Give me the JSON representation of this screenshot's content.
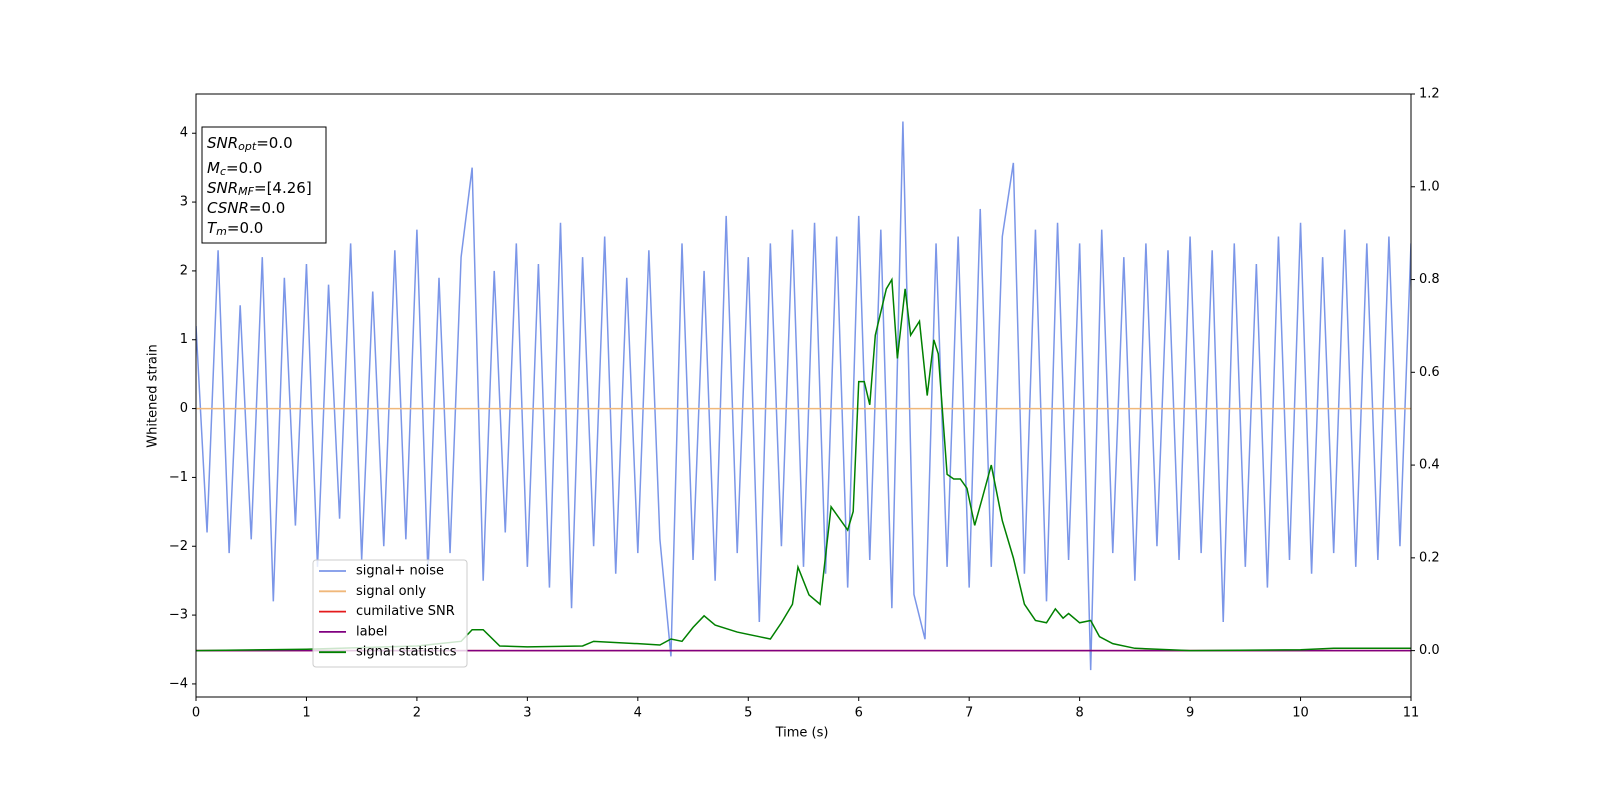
{
  "chart_data": {
    "type": "line",
    "xlabel": "Time (s)",
    "ylabel": "Whitened strain",
    "xlim": [
      0,
      11
    ],
    "ylim": [
      -4.19,
      4.57
    ],
    "y2lim": [
      -0.1,
      1.2
    ],
    "xticks": [
      0,
      1,
      2,
      3,
      4,
      5,
      6,
      7,
      8,
      9,
      10,
      11
    ],
    "yticks": [
      {
        "value": -4,
        "label": "−4"
      },
      {
        "value": -3,
        "label": "−3"
      },
      {
        "value": -2,
        "label": "−2"
      },
      {
        "value": -1,
        "label": "−1"
      },
      0,
      1,
      2,
      3,
      4
    ],
    "y2ticks": [
      {
        "value": 0,
        "label": "0.0"
      },
      {
        "value": 0.2,
        "label": "0.2"
      },
      {
        "value": 0.4,
        "label": "0.4"
      },
      {
        "value": 0.6,
        "label": "0.6"
      },
      {
        "value": 0.8,
        "label": "0.8"
      },
      {
        "value": 1,
        "label": "1.0"
      },
      {
        "value": 1.2,
        "label": "1.2"
      }
    ],
    "legend": "lower left",
    "annotations": [
      {
        "main": "SNR",
        "sub": "opt",
        "rest": "=0.0"
      },
      {
        "main": "M",
        "sub": "c",
        "rest": "=0.0"
      },
      {
        "main": "SNR",
        "sub": "MF",
        "rest": "=[4.26]"
      },
      {
        "main": "CSNR",
        "rest": "=0.0"
      },
      {
        "main": "T",
        "sub": "m",
        "rest": "=0.0"
      }
    ],
    "series": [
      {
        "name": "signal+ noise",
        "color": "#7b96e8",
        "x": [
          0,
          0.1,
          0.2,
          0.3,
          0.4,
          0.5,
          0.6,
          0.7,
          0.8,
          0.9,
          1,
          1.1,
          1.2,
          1.3,
          1.4,
          1.5,
          1.6,
          1.7,
          1.8,
          1.9,
          2,
          2.1,
          2.2,
          2.3,
          2.4,
          2.5,
          2.6,
          2.7,
          2.8,
          2.9,
          3,
          3.1,
          3.2,
          3.3,
          3.4,
          3.5,
          3.6,
          3.7,
          3.8,
          3.9,
          4,
          4.1,
          4.2,
          4.3,
          4.4,
          4.5,
          4.6,
          4.7,
          4.8,
          4.9,
          5,
          5.1,
          5.2,
          5.3,
          5.4,
          5.5,
          5.6,
          5.7,
          5.8,
          5.9,
          6,
          6.1,
          6.2,
          6.3,
          6.4,
          6.5,
          6.6,
          6.7,
          6.8,
          6.9,
          7,
          7.1,
          7.2,
          7.3,
          7.4,
          7.5,
          7.6,
          7.7,
          7.8,
          7.9,
          8,
          8.1,
          8.2,
          8.3,
          8.4,
          8.5,
          8.6,
          8.7,
          8.8,
          8.9,
          9,
          9.1,
          9.2,
          9.3,
          9.4,
          9.5,
          9.6,
          9.7,
          9.8,
          9.9,
          10,
          10.1,
          10.2,
          10.3,
          10.4,
          10.5,
          10.6,
          10.7,
          10.8,
          10.9,
          11
        ],
        "values": [
          1.2,
          -1.8,
          2.3,
          -2.1,
          1.5,
          -1.9,
          2.2,
          -2.8,
          1.9,
          -1.7,
          2.1,
          -2.3,
          1.8,
          -1.6,
          2.4,
          -2.2,
          1.7,
          -2.0,
          2.3,
          -1.9,
          2.6,
          -2.4,
          1.9,
          -2.1,
          2.2,
          3.5,
          -2.5,
          2.0,
          -1.8,
          2.4,
          -2.3,
          2.1,
          -2.6,
          2.7,
          -2.9,
          2.2,
          -2.0,
          2.5,
          -2.4,
          1.9,
          -2.1,
          2.3,
          -1.9,
          -3.6,
          2.4,
          -2.2,
          2.0,
          -2.5,
          2.8,
          -2.1,
          2.2,
          -3.1,
          2.4,
          -2.0,
          2.6,
          -2.3,
          2.7,
          -2.4,
          2.5,
          -2.6,
          2.8,
          -2.2,
          2.6,
          -2.9,
          4.17,
          -2.7,
          -3.35,
          2.4,
          -2.3,
          2.5,
          -2.6,
          2.9,
          -2.3,
          2.5,
          3.57,
          -2.4,
          2.6,
          -2.8,
          2.7,
          -2.2,
          2.4,
          -3.8,
          2.6,
          -2.1,
          2.2,
          -2.5,
          2.4,
          -2.0,
          2.3,
          -2.2,
          2.5,
          -2.1,
          2.3,
          -3.1,
          2.4,
          -2.3,
          2.1,
          -2.6,
          2.5,
          -2.2,
          2.7,
          -2.4,
          2.2,
          -2.1,
          2.6,
          -2.3,
          2.4,
          -2.2,
          2.5,
          -2.0,
          2.4
        ]
      },
      {
        "name": "signal only",
        "color": "#f0b87a",
        "x": [
          0,
          11
        ],
        "values": [
          0,
          0
        ]
      },
      {
        "name": "cumilative SNR",
        "color": "#e41a1c",
        "axis": "y2",
        "x": [
          0,
          11
        ],
        "values": [
          0,
          0
        ]
      },
      {
        "name": "label",
        "color": "#800080",
        "axis": "y2",
        "x": [
          0,
          11
        ],
        "values": [
          0,
          0
        ]
      },
      {
        "name": "signal statistics",
        "color": "#008000",
        "axis": "y2",
        "x": [
          0,
          1,
          2,
          2.4,
          2.5,
          2.6,
          2.75,
          3,
          3.5,
          3.6,
          4,
          4.2,
          4.3,
          4.4,
          4.5,
          4.6,
          4.7,
          4.9,
          5.1,
          5.2,
          5.3,
          5.4,
          5.45,
          5.55,
          5.65,
          5.75,
          5.9,
          5.95,
          6,
          6.05,
          6.1,
          6.15,
          6.25,
          6.3,
          6.35,
          6.42,
          6.47,
          6.55,
          6.62,
          6.68,
          6.72,
          6.8,
          6.86,
          6.92,
          6.98,
          7.05,
          7.12,
          7.2,
          7.3,
          7.4,
          7.5,
          7.6,
          7.7,
          7.78,
          7.85,
          7.9,
          8,
          8.1,
          8.18,
          8.3,
          8.5,
          9,
          10,
          10.3,
          11
        ],
        "values": [
          0,
          0.003,
          0.01,
          0.02,
          0.045,
          0.045,
          0.01,
          0.008,
          0.01,
          0.02,
          0.015,
          0.012,
          0.025,
          0.02,
          0.05,
          0.075,
          0.055,
          0.04,
          0.03,
          0.025,
          0.06,
          0.1,
          0.18,
          0.12,
          0.1,
          0.31,
          0.26,
          0.3,
          0.58,
          0.58,
          0.53,
          0.68,
          0.78,
          0.8,
          0.63,
          0.78,
          0.68,
          0.71,
          0.55,
          0.67,
          0.64,
          0.38,
          0.37,
          0.37,
          0.35,
          0.27,
          0.33,
          0.4,
          0.28,
          0.2,
          0.1,
          0.065,
          0.06,
          0.09,
          0.07,
          0.08,
          0.06,
          0.065,
          0.03,
          0.015,
          0.005,
          0,
          0.002,
          0.005,
          0.005
        ]
      }
    ]
  }
}
